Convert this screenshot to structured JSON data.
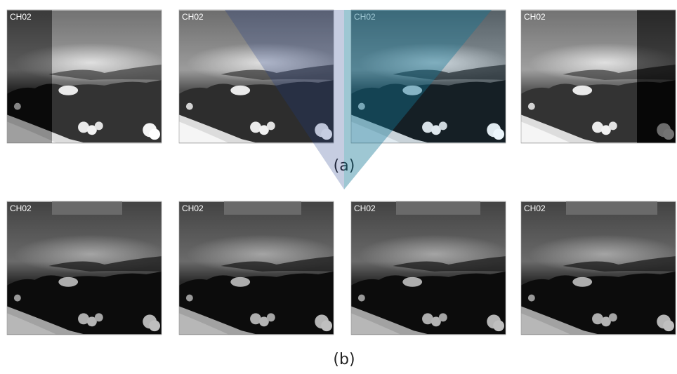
{
  "rows": [
    {
      "panels": [
        {
          "label": "CH02"
        },
        {
          "label": "CH02"
        },
        {
          "label": "CH02"
        },
        {
          "label": "CH02"
        }
      ],
      "caption": "(a)"
    },
    {
      "panels": [
        {
          "label": "CH02"
        },
        {
          "label": "CH02"
        },
        {
          "label": "CH02"
        },
        {
          "label": "CH02"
        }
      ],
      "caption": "(b)"
    }
  ]
}
